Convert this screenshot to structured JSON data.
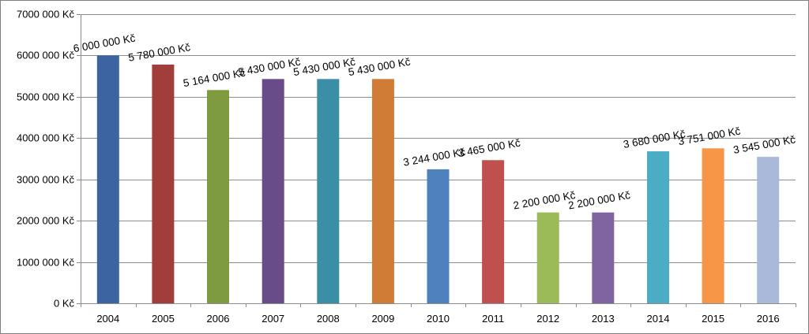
{
  "chart_data": {
    "type": "bar",
    "categories": [
      "2004",
      "2005",
      "2006",
      "2007",
      "2008",
      "2009",
      "2010",
      "2011",
      "2012",
      "2013",
      "2014",
      "2015",
      "2016"
    ],
    "values": [
      6000000,
      5780000,
      5164000,
      5430000,
      5430000,
      5430000,
      3244000,
      3465000,
      2200000,
      2200000,
      3680000,
      3751000,
      3545000
    ],
    "data_labels": [
      "6 000 000 Kč",
      "5 780 000 Kč",
      "5 164 000 Kč",
      "5 430 000 Kč",
      "5 430 000 Kč",
      "5 430 000 Kč",
      "3 244 000 Kč",
      "3 465 000 Kč",
      "2 200 000 Kč",
      "2 200 000 Kč",
      "3 680 000 Kč",
      "3 751 000 Kč",
      "3 545 000 Kč"
    ],
    "y_ticks": [
      0,
      1000000,
      2000000,
      3000000,
      4000000,
      5000000,
      6000000,
      7000000
    ],
    "y_tick_labels": [
      "0 Kč",
      "1000 000 Kč",
      "2000 000 Kč",
      "3000 000 Kč",
      "4000 000 Kč",
      "5000 000 Kč",
      "6000 000 Kč",
      "7000 000 Kč"
    ],
    "ylim": [
      0,
      7000000
    ],
    "grid": true,
    "colors": [
      "#3b64a0",
      "#a13e3b",
      "#7e9b3f",
      "#684b89",
      "#3a8fa6",
      "#d07c35",
      "#4f81bd",
      "#c0504d",
      "#9bbb59",
      "#8064a2",
      "#4bacc6",
      "#f79646",
      "#a9b9d9"
    ],
    "title": "",
    "xlabel": "",
    "ylabel": ""
  }
}
